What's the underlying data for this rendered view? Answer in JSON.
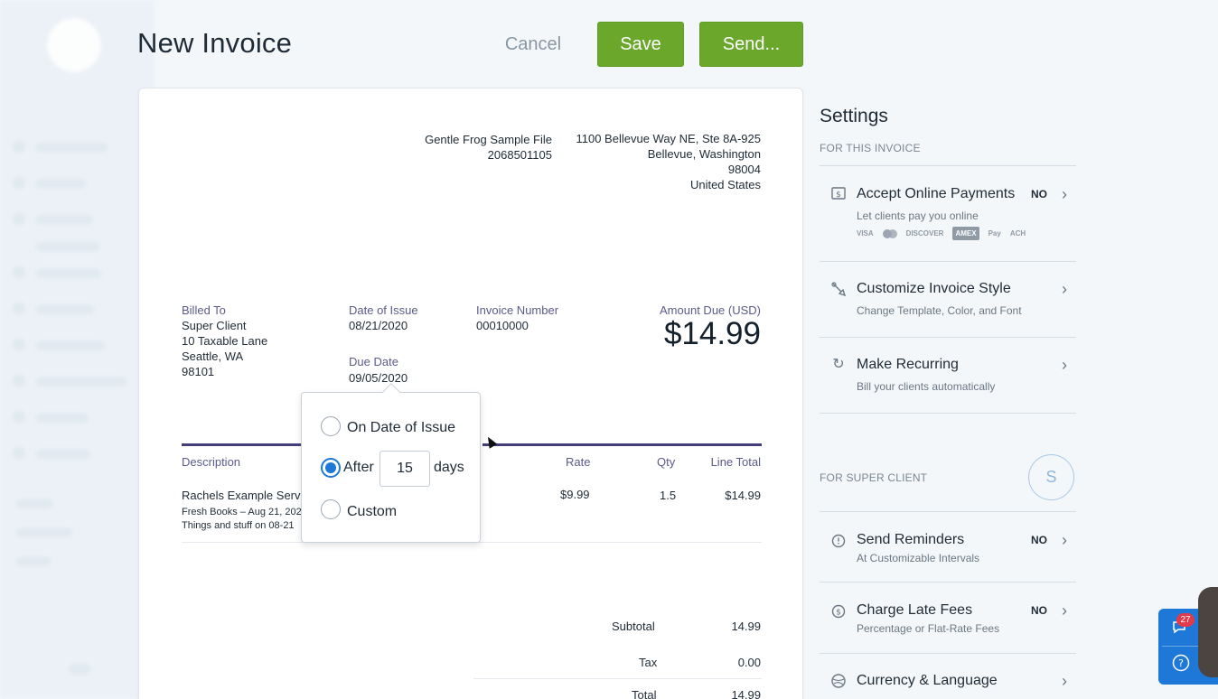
{
  "page_title": "New Invoice",
  "toolbar": {
    "cancel_label": "Cancel",
    "save_label": "Save",
    "send_label": "Send..."
  },
  "business": {
    "name": "Gentle Frog Sample File",
    "phone": "2068501105",
    "address_line1": "1100 Bellevue Way NE, Ste 8A-925",
    "address_line2": "Bellevue, Washington",
    "postal": "98004",
    "country": "United States"
  },
  "billed_to": {
    "label": "Billed To",
    "name": "Super Client",
    "street": "10 Taxable Lane",
    "city": "Seattle, WA",
    "zip": "98101"
  },
  "date_of_issue": {
    "label": "Date of Issue",
    "value": "08/21/2020"
  },
  "due_date": {
    "label": "Due Date",
    "value": "09/05/2020"
  },
  "invoice_number": {
    "label": "Invoice Number",
    "value": "00010000"
  },
  "amount_due": {
    "label": "Amount Due (USD)",
    "value": "$14.99"
  },
  "columns": {
    "description": "Description",
    "rate": "Rate",
    "qty": "Qty",
    "line_total": "Line Total"
  },
  "line_item": {
    "description": "Rachels Example Serv",
    "sub1": "Fresh Books – Aug 21, 202",
    "sub2": "Things and stuff on 08-21",
    "rate": "$9.99",
    "qty": "1.5",
    "total": "$14.99"
  },
  "totals": {
    "subtotal_label": "Subtotal",
    "subtotal": "14.99",
    "tax_label": "Tax",
    "tax": "0.00",
    "total_label": "Total",
    "total": "14.99"
  },
  "due_popover": {
    "option_issue": "On Date of Issue",
    "option_after": "After",
    "days_value": "15",
    "days_label": "days",
    "option_custom": "Custom",
    "selected": "after"
  },
  "settings": {
    "title": "Settings",
    "for_invoice": "FOR THIS INVOICE",
    "accept_payments": {
      "title": "Accept Online Payments",
      "desc": "Let clients pay you online",
      "status": "NO"
    },
    "payment_logos": [
      "VISA",
      "DISCOVER",
      "AMEX",
      "Pay",
      "ACH"
    ],
    "customize_style": {
      "title": "Customize Invoice Style",
      "desc": "Change Template, Color, and Font"
    },
    "make_recurring": {
      "title": "Make Recurring",
      "desc": "Bill your clients automatically"
    },
    "for_client": "FOR SUPER CLIENT",
    "client_initial": "S",
    "send_reminders": {
      "title": "Send Reminders",
      "desc": "At Customizable Intervals",
      "status": "NO"
    },
    "late_fees": {
      "title": "Charge Late Fees",
      "desc": "Percentage or Flat-Rate Fees",
      "status": "NO"
    },
    "currency": {
      "title": "Currency & Language"
    }
  },
  "help_widget": {
    "badge": "27"
  },
  "colors": {
    "primary_green": "#6aa72b",
    "accent_purple": "#433d7a",
    "radio_blue": "#1e78d7"
  },
  "icons": [
    "dollar-screen-icon",
    "brush-icon",
    "recurring-icon",
    "alarm-icon",
    "late-fee-icon",
    "globe-icon",
    "chat-icon",
    "help-icon"
  ]
}
